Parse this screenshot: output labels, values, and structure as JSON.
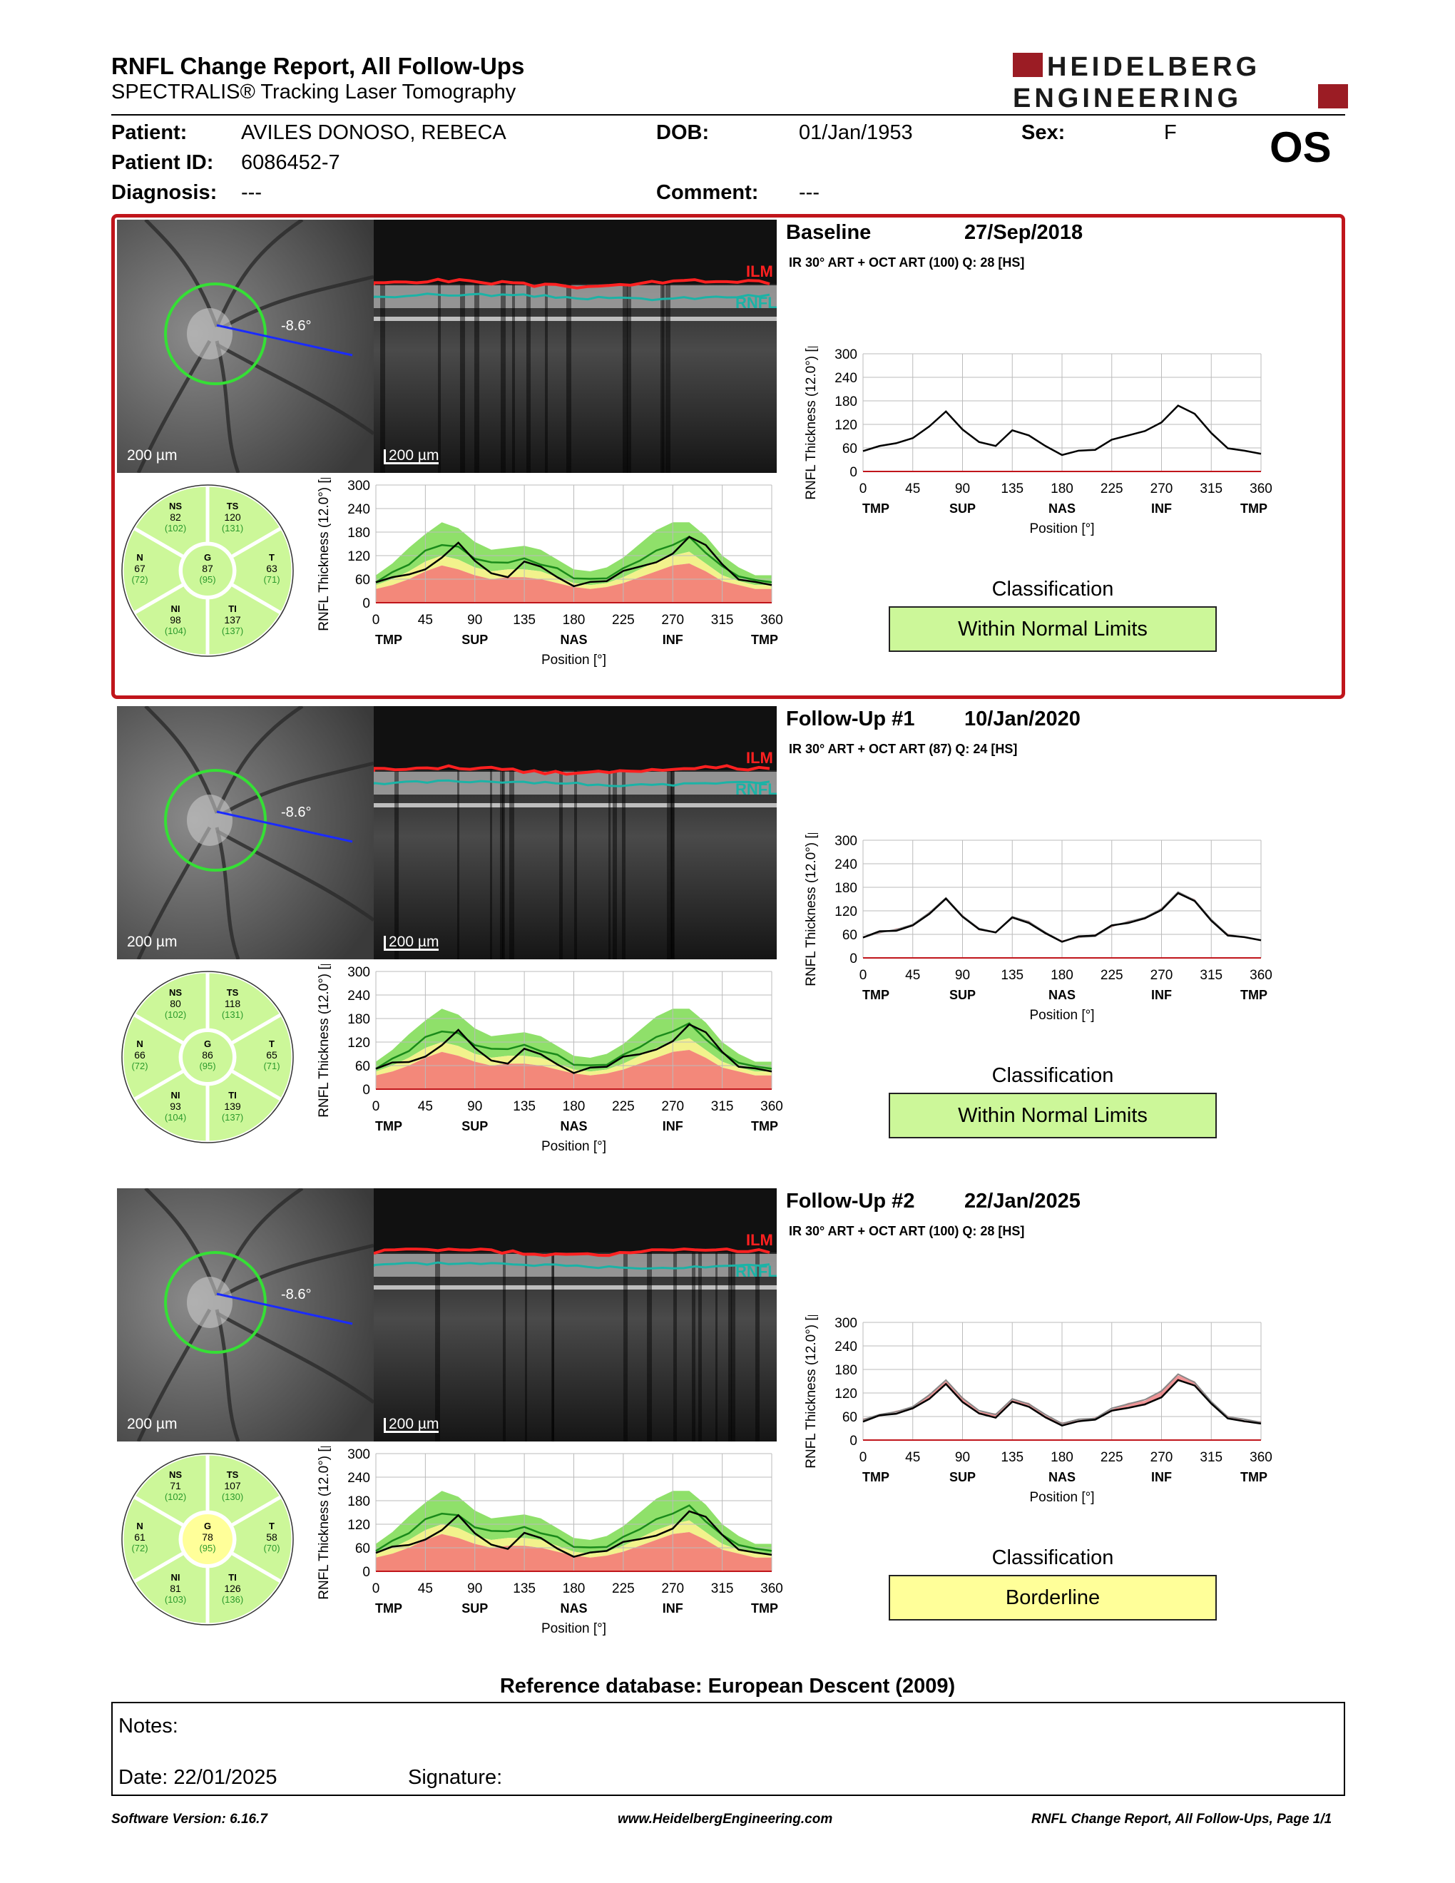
{
  "header": {
    "title": "RNFL Change Report, All Follow-Ups",
    "subtitle": "SPECTRALIS® Tracking Laser Tomography",
    "logo_line1": "HEIDELBERG",
    "logo_line2": "ENGINEERING",
    "eye": "OS"
  },
  "patient": {
    "patient_label": "Patient:",
    "patient_name": "AVILES DONOSO, REBECA",
    "id_label": "Patient ID:",
    "patient_id": "6086452-7",
    "diagnosis_label": "Diagnosis:",
    "diagnosis": "---",
    "dob_label": "DOB:",
    "dob": "01/Jan/1953",
    "comment_label": "Comment:",
    "comment": "---",
    "sex_label": "Sex:",
    "sex": "F"
  },
  "common": {
    "scale_text": "200 µm",
    "angle_text": "-8.6°",
    "ilm_label": "ILM",
    "rnfl_label": "RNFL",
    "y_label": "RNFL Thickness (12.0°) [µm]",
    "x_label": "Position [°]",
    "y_ticks": [
      "300",
      "240",
      "180",
      "120",
      "60",
      "0"
    ],
    "x_ticks": [
      "0",
      "45",
      "90",
      "135",
      "180",
      "225",
      "270",
      "315",
      "360"
    ],
    "x_regions": [
      "TMP",
      "SUP",
      "NAS",
      "INF",
      "TMP"
    ],
    "classification_title": "Classification",
    "colors": {
      "frame": "#c0151b",
      "normal": "#ccf799",
      "borderline": "#ffff99",
      "ilm": "#ff2020",
      "rnfl": "#1bb3a6",
      "band_green": "#8fe06a",
      "band_yellow": "#f2f28c",
      "band_red": "#f3887a",
      "logo": "#9b1c24"
    }
  },
  "sections": [
    {
      "name": "Baseline",
      "date": "27/Sep/2018",
      "info": "IR 30° ART + OCT ART (100) Q: 28 [HS]",
      "classification": "Within Normal Limits",
      "class_color": "#ccf799",
      "sectors": {
        "NS": {
          "label": "NS",
          "value": "82",
          "ref": "(102)",
          "color": "#ccf799"
        },
        "TS": {
          "label": "TS",
          "value": "120",
          "ref": "(131)",
          "color": "#ccf799"
        },
        "N": {
          "label": "N",
          "value": "67",
          "ref": "(72)",
          "color": "#ccf799"
        },
        "G": {
          "label": "G",
          "value": "87",
          "ref": "(95)",
          "color": "#ccf799"
        },
        "T": {
          "label": "T",
          "value": "63",
          "ref": "(71)",
          "color": "#ccf799"
        },
        "NI": {
          "label": "NI",
          "value": "98",
          "ref": "(104)",
          "color": "#ccf799"
        },
        "TI": {
          "label": "TI",
          "value": "137",
          "ref": "(137)",
          "color": "#ccf799"
        }
      }
    },
    {
      "name": "Follow-Up #1",
      "date": "10/Jan/2020",
      "info": "IR 30° ART + OCT ART (87) Q: 24 [HS]",
      "classification": "Within Normal Limits",
      "class_color": "#ccf799",
      "sectors": {
        "NS": {
          "label": "NS",
          "value": "80",
          "ref": "(102)",
          "color": "#ccf799"
        },
        "TS": {
          "label": "TS",
          "value": "118",
          "ref": "(131)",
          "color": "#ccf799"
        },
        "N": {
          "label": "N",
          "value": "66",
          "ref": "(72)",
          "color": "#ccf799"
        },
        "G": {
          "label": "G",
          "value": "86",
          "ref": "(95)",
          "color": "#ccf799"
        },
        "T": {
          "label": "T",
          "value": "65",
          "ref": "(71)",
          "color": "#ccf799"
        },
        "NI": {
          "label": "NI",
          "value": "93",
          "ref": "(104)",
          "color": "#ccf799"
        },
        "TI": {
          "label": "TI",
          "value": "139",
          "ref": "(137)",
          "color": "#ccf799"
        }
      }
    },
    {
      "name": "Follow-Up #2",
      "date": "22/Jan/2025",
      "info": "IR 30° ART + OCT ART (100) Q: 28 [HS]",
      "classification": "Borderline",
      "class_color": "#ffff99",
      "sectors": {
        "NS": {
          "label": "NS",
          "value": "71",
          "ref": "(102)",
          "color": "#ccf799"
        },
        "TS": {
          "label": "TS",
          "value": "107",
          "ref": "(130)",
          "color": "#ccf799"
        },
        "N": {
          "label": "N",
          "value": "61",
          "ref": "(72)",
          "color": "#ccf799"
        },
        "G": {
          "label": "G",
          "value": "78",
          "ref": "(95)",
          "color": "#ffff99"
        },
        "T": {
          "label": "T",
          "value": "58",
          "ref": "(70)",
          "color": "#ccf799"
        },
        "NI": {
          "label": "NI",
          "value": "81",
          "ref": "(103)",
          "color": "#ccf799"
        },
        "TI": {
          "label": "TI",
          "value": "126",
          "ref": "(136)",
          "color": "#ccf799"
        }
      }
    }
  ],
  "chart_data": {
    "type": "line",
    "xlabel": "Position [°]",
    "ylabel": "RNFL Thickness (12.0°) [µm]",
    "xlim": [
      0,
      360
    ],
    "ylim": [
      0,
      300
    ],
    "x": [
      0,
      15,
      30,
      45,
      60,
      75,
      90,
      105,
      120,
      135,
      150,
      165,
      180,
      195,
      210,
      225,
      240,
      255,
      270,
      285,
      300,
      315,
      330,
      345,
      360
    ],
    "normal_mean": [
      55,
      75,
      100,
      130,
      150,
      140,
      115,
      100,
      105,
      110,
      100,
      85,
      65,
      58,
      65,
      85,
      110,
      130,
      150,
      165,
      130,
      90,
      70,
      55,
      55
    ],
    "normal_upper": [
      70,
      100,
      140,
      175,
      205,
      190,
      155,
      135,
      140,
      145,
      135,
      110,
      85,
      80,
      90,
      115,
      150,
      185,
      205,
      205,
      170,
      120,
      90,
      70,
      70
    ],
    "borderline_lower": [
      45,
      60,
      80,
      105,
      120,
      110,
      90,
      80,
      85,
      85,
      80,
      65,
      50,
      45,
      50,
      65,
      85,
      105,
      120,
      130,
      100,
      70,
      55,
      45,
      45
    ],
    "outside_lower": [
      35,
      45,
      60,
      80,
      95,
      85,
      70,
      60,
      65,
      65,
      60,
      50,
      40,
      35,
      40,
      50,
      65,
      80,
      95,
      100,
      80,
      55,
      45,
      35,
      35
    ],
    "series": [
      {
        "name": "Baseline",
        "values": [
          55,
          62,
          75,
          82,
          118,
          150,
          110,
          72,
          68,
          102,
          95,
          62,
          45,
          50,
          58,
          78,
          95,
          100,
          128,
          165,
          150,
          95,
          62,
          50,
          48
        ]
      },
      {
        "name": "Follow-Up #1",
        "values": [
          55,
          65,
          72,
          80,
          115,
          148,
          108,
          70,
          68,
          100,
          92,
          60,
          44,
          52,
          60,
          80,
          92,
          98,
          125,
          162,
          148,
          92,
          60,
          50,
          48
        ]
      },
      {
        "name": "Follow-Up #2",
        "values": [
          50,
          60,
          70,
          78,
          108,
          140,
          100,
          65,
          60,
          95,
          88,
          55,
          40,
          45,
          55,
          72,
          85,
          88,
          112,
          150,
          142,
          90,
          58,
          45,
          45
        ]
      }
    ]
  },
  "reference": "Reference database: European Descent (2009)",
  "notes": {
    "notes_label": "Notes:",
    "date_label": "Date: 22/01/2025",
    "signature_label": "Signature:"
  },
  "footer": {
    "version": "Software Version: 6.16.7",
    "url": "www.HeidelbergEngineering.com",
    "page": "RNFL Change Report, All Follow-Ups, Page 1/1"
  }
}
